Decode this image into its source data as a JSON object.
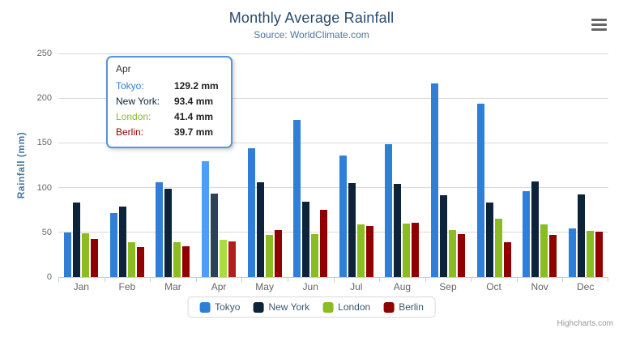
{
  "chart_data": {
    "type": "bar",
    "title": "Monthly Average Rainfall",
    "subtitle": "Source: WorldClimate.com",
    "xlabel": "",
    "ylabel": "Rainfall (mm)",
    "ylim": [
      0,
      250
    ],
    "y_ticks": [
      0,
      50,
      100,
      150,
      200,
      250
    ],
    "grid": true,
    "legend_position": "bottom",
    "hovered_category": "Apr",
    "categories": [
      "Jan",
      "Feb",
      "Mar",
      "Apr",
      "May",
      "Jun",
      "Jul",
      "Aug",
      "Sep",
      "Oct",
      "Nov",
      "Dec"
    ],
    "series": [
      {
        "name": "Tokyo",
        "color": "#2f7ed8",
        "values": [
          49.9,
          71.5,
          106.4,
          129.2,
          144.0,
          176.0,
          135.6,
          148.5,
          216.4,
          194.1,
          95.6,
          54.4
        ]
      },
      {
        "name": "New York",
        "color": "#0d233a",
        "values": [
          83.6,
          78.8,
          98.5,
          93.4,
          106.0,
          84.5,
          105.0,
          104.3,
          91.2,
          83.5,
          106.6,
          92.3
        ]
      },
      {
        "name": "London",
        "color": "#8bbc21",
        "values": [
          48.9,
          38.8,
          39.3,
          41.4,
          47.0,
          48.3,
          59.0,
          59.6,
          52.4,
          65.2,
          59.3,
          51.2
        ]
      },
      {
        "name": "Berlin",
        "color": "#910000",
        "values": [
          42.4,
          33.2,
          34.5,
          39.7,
          52.6,
          75.5,
          57.4,
          60.4,
          47.6,
          39.1,
          46.8,
          51.1
        ]
      }
    ]
  },
  "tooltip": {
    "header": "Apr",
    "border_color": "#5794d9",
    "rows": [
      {
        "label": "Tokyo:",
        "value": "129.2 mm",
        "color": "#2f7ed8"
      },
      {
        "label": "New York:",
        "value": "93.4 mm",
        "color": "#0d233a"
      },
      {
        "label": "London:",
        "value": "41.4 mm",
        "color": "#8bbc21"
      },
      {
        "label": "Berlin:",
        "value": "39.7 mm",
        "color": "#910000"
      }
    ]
  },
  "export_menu": {
    "icon": "hamburger-icon"
  },
  "credits": {
    "label": "Highcharts.com"
  },
  "colors": {
    "title": "#274b6d",
    "subtitle": "#4d759e",
    "axis_title": "#4d759e",
    "tick_label": "#666666",
    "gridline": "#d8d8d8",
    "axis_line": "#c0d0e0",
    "legend_text": "#3e576f",
    "credits_text": "#999999"
  }
}
